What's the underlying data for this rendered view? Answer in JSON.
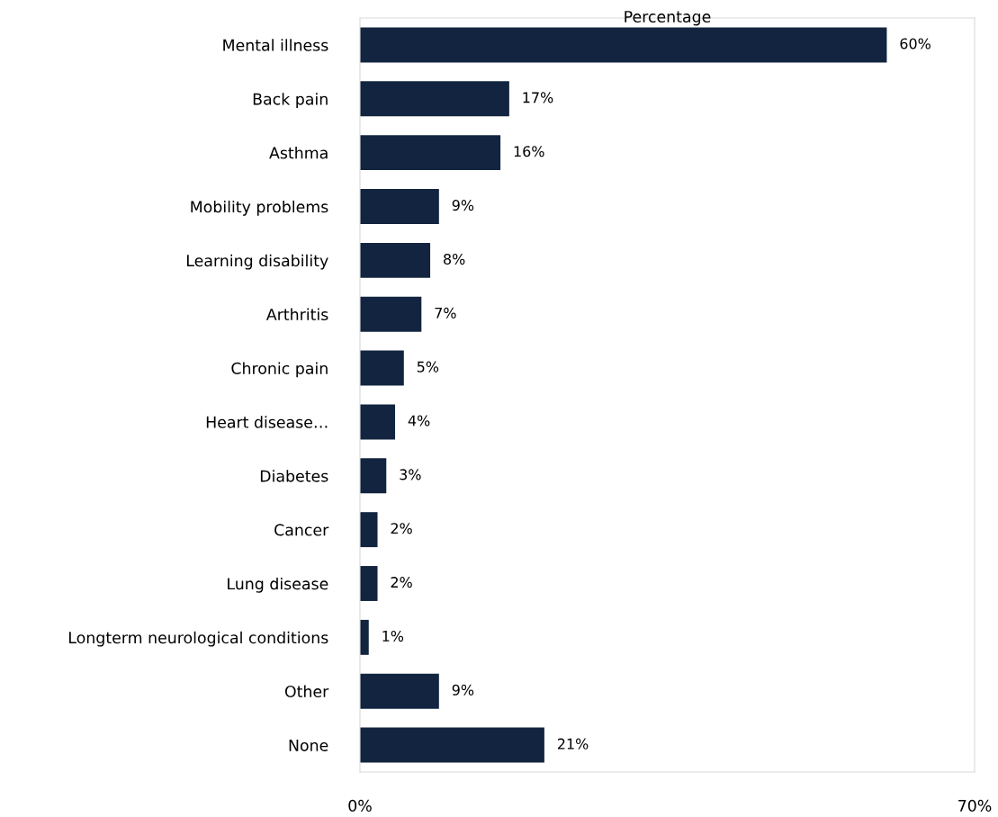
{
  "chart_data": {
    "type": "bar",
    "orientation": "horizontal",
    "title": "Percentage",
    "categories": [
      "Mental illness",
      "Back pain",
      "Asthma",
      "Mobility problems",
      "Learning disability",
      "Arthritis",
      "Chronic pain",
      "Heart disease…",
      "Diabetes",
      "Cancer",
      "Lung disease",
      "Longterm neurological conditions",
      "Other",
      "None"
    ],
    "values": [
      60,
      17,
      16,
      9,
      8,
      7,
      5,
      4,
      3,
      2,
      2,
      1,
      9,
      21
    ],
    "value_labels": [
      "60%",
      "17%",
      "16%",
      "9%",
      "8%",
      "7%",
      "5%",
      "4%",
      "3%",
      "2%",
      "2%",
      "1%",
      "9%",
      "21%"
    ],
    "color": "#12243f",
    "xlim": [
      0,
      70
    ],
    "xticks": [
      {
        "value": 0,
        "label": "0%"
      },
      {
        "value": 70,
        "label": "70%"
      }
    ],
    "grid": false,
    "legend": false
  }
}
